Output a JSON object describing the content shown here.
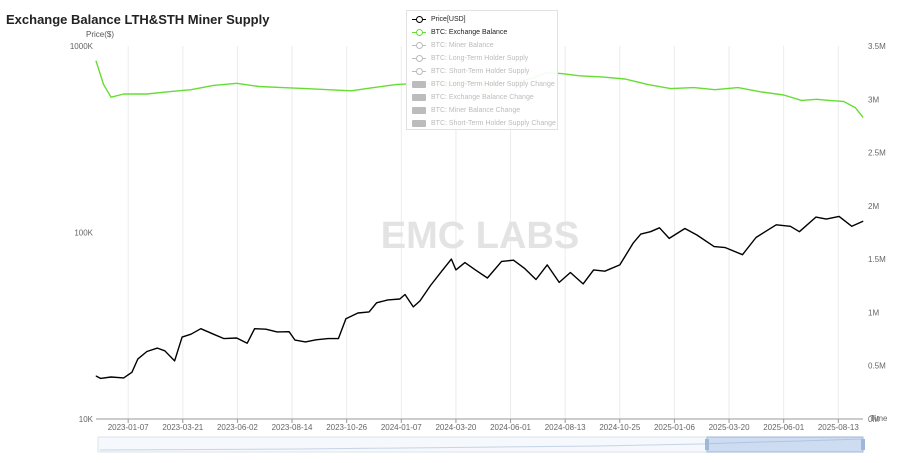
{
  "title": "Exchange Balance LTH&STH Miner Supply",
  "watermark": "EMC LABS",
  "legend": [
    {
      "label": "Price[USD]",
      "symbol": "line",
      "active": true,
      "color": "#000000"
    },
    {
      "label": "BTC: Exchange Balance",
      "symbol": "line",
      "active": true,
      "color": "#66dd33"
    },
    {
      "label": "BTC: Miner Balance",
      "symbol": "line",
      "active": false,
      "color": "#bcbcbc"
    },
    {
      "label": "BTC: Long-Term Holder Supply",
      "symbol": "line",
      "active": false,
      "color": "#bcbcbc"
    },
    {
      "label": "BTC: Short-Term Holder Supply",
      "symbol": "line",
      "active": false,
      "color": "#bcbcbc"
    },
    {
      "label": "BTC: Long-Term Holder Supply Change",
      "symbol": "bar",
      "active": false,
      "color": "#bcbcbc"
    },
    {
      "label": "BTC: Exchange Balance Change",
      "symbol": "bar",
      "active": false,
      "color": "#bcbcbc"
    },
    {
      "label": "BTC: Miner Balance Change",
      "symbol": "bar",
      "active": false,
      "color": "#bcbcbc"
    },
    {
      "label": "BTC: Short-Term Holder Supply Change",
      "symbol": "bar",
      "active": false,
      "color": "#bcbcbc"
    }
  ],
  "chart_data": {
    "type": "line",
    "title": "Exchange Balance LTH&STH Miner Supply",
    "xlabel": "Time",
    "x_ticks": [
      "2023-01-07",
      "2023-03-21",
      "2023-06-02",
      "2023-08-14",
      "2023-10-26",
      "2024-01-07",
      "2024-03-20",
      "2024-06-01",
      "2024-08-13",
      "2024-10-25",
      "2025-01-06",
      "2025-03-20",
      "2025-06-01",
      "2025-08-13"
    ],
    "x_range": [
      "2022-11-25",
      "2025-09-15"
    ],
    "y_left": {
      "label": "Price($)",
      "scale": "log",
      "range": [
        10000,
        1000000
      ],
      "ticks": [
        "10K",
        "100K",
        "1000K"
      ]
    },
    "y_right": {
      "label": "",
      "scale": "linear",
      "range": [
        0,
        3500000
      ],
      "ticks": [
        "0M",
        "0.5M",
        "1M",
        "1.5M",
        "2M",
        "2.5M",
        "3M",
        "3.5M"
      ]
    },
    "grid": "vertical",
    "legend_position": "top-center",
    "series": [
      {
        "name": "Price[USD]",
        "axis": "left",
        "color": "#000000",
        "points": [
          [
            "2022-11-25",
            17000
          ],
          [
            "2022-12-01",
            16500
          ],
          [
            "2022-12-15",
            16800
          ],
          [
            "2023-01-01",
            16600
          ],
          [
            "2023-01-12",
            17800
          ],
          [
            "2023-01-20",
            21000
          ],
          [
            "2023-02-01",
            23000
          ],
          [
            "2023-02-15",
            24000
          ],
          [
            "2023-02-25",
            23200
          ],
          [
            "2023-03-10",
            20500
          ],
          [
            "2023-03-20",
            27500
          ],
          [
            "2023-04-01",
            28500
          ],
          [
            "2023-04-14",
            30500
          ],
          [
            "2023-05-01",
            28500
          ],
          [
            "2023-05-15",
            27000
          ],
          [
            "2023-06-01",
            27200
          ],
          [
            "2023-06-15",
            25500
          ],
          [
            "2023-06-25",
            30500
          ],
          [
            "2023-07-10",
            30300
          ],
          [
            "2023-07-25",
            29300
          ],
          [
            "2023-08-10",
            29400
          ],
          [
            "2023-08-18",
            26500
          ],
          [
            "2023-09-01",
            25900
          ],
          [
            "2023-09-15",
            26600
          ],
          [
            "2023-10-01",
            27000
          ],
          [
            "2023-10-15",
            27000
          ],
          [
            "2023-10-25",
            34500
          ],
          [
            "2023-11-10",
            37000
          ],
          [
            "2023-11-25",
            37500
          ],
          [
            "2023-12-05",
            42000
          ],
          [
            "2023-12-20",
            43500
          ],
          [
            "2024-01-05",
            44000
          ],
          [
            "2024-01-12",
            46500
          ],
          [
            "2024-01-23",
            39900
          ],
          [
            "2024-02-01",
            43000
          ],
          [
            "2024-02-15",
            52000
          ],
          [
            "2024-03-01",
            62000
          ],
          [
            "2024-03-14",
            72000
          ],
          [
            "2024-03-20",
            63000
          ],
          [
            "2024-04-01",
            69000
          ],
          [
            "2024-04-15",
            63000
          ],
          [
            "2024-05-01",
            57000
          ],
          [
            "2024-05-20",
            70000
          ],
          [
            "2024-06-05",
            71000
          ],
          [
            "2024-06-20",
            64000
          ],
          [
            "2024-07-05",
            56000
          ],
          [
            "2024-07-20",
            67000
          ],
          [
            "2024-08-05",
            54000
          ],
          [
            "2024-08-20",
            61000
          ],
          [
            "2024-09-06",
            53000
          ],
          [
            "2024-09-20",
            63000
          ],
          [
            "2024-10-05",
            62000
          ],
          [
            "2024-10-25",
            67000
          ],
          [
            "2024-11-12",
            88000
          ],
          [
            "2024-11-22",
            98000
          ],
          [
            "2024-12-05",
            101000
          ],
          [
            "2024-12-17",
            106000
          ],
          [
            "2024-12-30",
            93000
          ],
          [
            "2025-01-20",
            105000
          ],
          [
            "2025-02-05",
            97000
          ],
          [
            "2025-02-28",
            84000
          ],
          [
            "2025-03-15",
            83000
          ],
          [
            "2025-04-07",
            76000
          ],
          [
            "2025-04-25",
            94000
          ],
          [
            "2025-05-22",
            110000
          ],
          [
            "2025-06-10",
            108000
          ],
          [
            "2025-06-22",
            101000
          ],
          [
            "2025-07-14",
            121000
          ],
          [
            "2025-07-28",
            118000
          ],
          [
            "2025-08-14",
            122000
          ],
          [
            "2025-08-31",
            108000
          ],
          [
            "2025-09-15",
            115000
          ]
        ]
      },
      {
        "name": "BTC: Exchange Balance",
        "axis": "right",
        "color": "#66dd33",
        "points": [
          [
            "2022-11-25",
            3360000
          ],
          [
            "2022-12-05",
            3140000
          ],
          [
            "2022-12-15",
            3020000
          ],
          [
            "2023-01-01",
            3050000
          ],
          [
            "2023-02-01",
            3050000
          ],
          [
            "2023-03-01",
            3070000
          ],
          [
            "2023-04-01",
            3090000
          ],
          [
            "2023-05-01",
            3130000
          ],
          [
            "2023-06-01",
            3150000
          ],
          [
            "2023-07-01",
            3120000
          ],
          [
            "2023-08-01",
            3110000
          ],
          [
            "2023-09-01",
            3100000
          ],
          [
            "2023-10-01",
            3090000
          ],
          [
            "2023-11-01",
            3080000
          ],
          [
            "2023-12-01",
            3110000
          ],
          [
            "2024-01-01",
            3140000
          ],
          [
            "2024-02-01",
            3150000
          ],
          [
            "2024-03-01",
            3140000
          ],
          [
            "2024-04-01",
            3170000
          ],
          [
            "2024-05-01",
            3140000
          ],
          [
            "2024-06-01",
            3150000
          ],
          [
            "2024-07-01",
            3200000
          ],
          [
            "2024-07-20",
            3250000
          ],
          [
            "2024-08-10",
            3240000
          ],
          [
            "2024-09-01",
            3220000
          ],
          [
            "2024-10-01",
            3210000
          ],
          [
            "2024-11-01",
            3190000
          ],
          [
            "2024-12-01",
            3140000
          ],
          [
            "2025-01-01",
            3100000
          ],
          [
            "2025-02-01",
            3110000
          ],
          [
            "2025-03-01",
            3090000
          ],
          [
            "2025-04-01",
            3110000
          ],
          [
            "2025-05-01",
            3070000
          ],
          [
            "2025-06-01",
            3040000
          ],
          [
            "2025-06-25",
            2990000
          ],
          [
            "2025-07-15",
            3000000
          ],
          [
            "2025-08-01",
            2990000
          ],
          [
            "2025-08-20",
            2980000
          ],
          [
            "2025-09-05",
            2920000
          ],
          [
            "2025-09-15",
            2830000
          ]
        ]
      }
    ]
  }
}
